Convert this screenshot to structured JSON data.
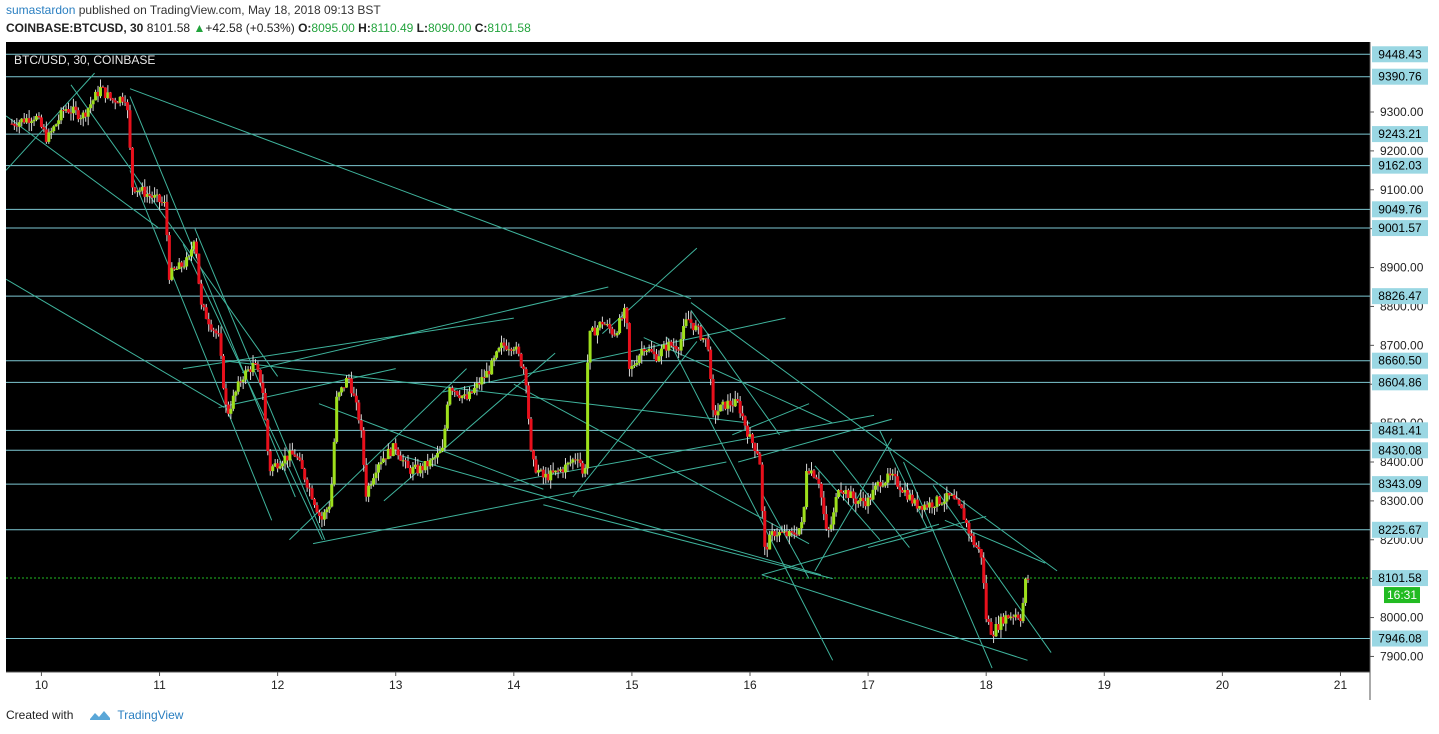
{
  "header": {
    "author": "sumastardon",
    "published_text": "published on TradingView.com, May 18, 2018 09:13 BST",
    "symbol": "COINBASE:BTCUSD, 30",
    "last": "8101.58",
    "change": "+42.58 (+0.53%)",
    "o_label": "O:",
    "o": "8095.00",
    "h_label": "H:",
    "h": "8110.49",
    "l_label": "L:",
    "l": "8090.00",
    "c_label": "C:",
    "c": "8101.58"
  },
  "footer": {
    "created_with": "Created with",
    "brand": "TradingView"
  },
  "colors": {
    "background": "#000000",
    "up": "#9ee01c",
    "down": "#e8101c",
    "wick": "#d8d8d8",
    "trendline": "#3fb39c",
    "hline": "#7ec8d3",
    "tag_bg": "#9ad7e3",
    "last_price": "#22bb22"
  },
  "chart_data": {
    "type": "candlestick",
    "title": "BTC/USD, 30, COINBASE",
    "ylim": [
      7860,
      9480
    ],
    "xlim": [
      9.7,
      21.25
    ],
    "y_ticks": [
      7900,
      8000,
      8100,
      8200,
      8300,
      8400,
      8500,
      8600,
      8700,
      8800,
      8900,
      9000,
      9100,
      9200,
      9300
    ],
    "y_tick_labels": [
      "7900.00",
      "8000.00",
      "8100.00",
      "8200.00",
      "8300.00",
      "8400.00",
      "8500.00",
      "8600.00",
      "8700.00",
      "8800.00",
      "8900.00",
      "9000.00",
      "9100.00",
      "9200.00",
      "9300.00"
    ],
    "x_ticks": [
      10,
      11,
      12,
      13,
      14,
      15,
      16,
      17,
      18,
      19,
      20,
      21
    ],
    "x_tick_labels": [
      "10",
      "11",
      "12",
      "13",
      "14",
      "15",
      "16",
      "17",
      "18",
      "19",
      "20",
      "21"
    ],
    "horizontal_levels": [
      9448.43,
      9390.76,
      9243.21,
      9162.03,
      9049.76,
      9001.57,
      8826.47,
      8660.5,
      8604.86,
      8481.41,
      8430.08,
      8343.09,
      8225.67,
      7946.08
    ],
    "horizontal_level_labels": [
      "9448.43",
      "9390.76",
      "9243.21",
      "9162.03",
      "9049.76",
      "9001.57",
      "8826.47",
      "8660.50",
      "8604.86",
      "8481.41",
      "8430.08",
      "8343.09",
      "8225.67",
      "7946.08"
    ],
    "last_price": 8101.58,
    "last_price_label": "8101.58",
    "countdown": "16:31",
    "price_path": [
      [
        9.75,
        9270
      ],
      [
        9.95,
        9290
      ],
      [
        10.05,
        9230
      ],
      [
        10.2,
        9310
      ],
      [
        10.35,
        9290
      ],
      [
        10.5,
        9360
      ],
      [
        10.6,
        9330
      ],
      [
        10.72,
        9340
      ],
      [
        10.77,
        9110
      ],
      [
        10.95,
        9080
      ],
      [
        11.05,
        9060
      ],
      [
        11.08,
        8880
      ],
      [
        11.25,
        8920
      ],
      [
        11.3,
        8990
      ],
      [
        11.35,
        8800
      ],
      [
        11.5,
        8720
      ],
      [
        11.57,
        8520
      ],
      [
        11.7,
        8620
      ],
      [
        11.8,
        8650
      ],
      [
        11.87,
        8600
      ],
      [
        11.93,
        8380
      ],
      [
        12.05,
        8410
      ],
      [
        12.15,
        8420
      ],
      [
        12.3,
        8310
      ],
      [
        12.37,
        8250
      ],
      [
        12.45,
        8300
      ],
      [
        12.5,
        8560
      ],
      [
        12.6,
        8620
      ],
      [
        12.7,
        8500
      ],
      [
        12.75,
        8320
      ],
      [
        12.85,
        8400
      ],
      [
        13.0,
        8440
      ],
      [
        13.1,
        8380
      ],
      [
        13.2,
        8380
      ],
      [
        13.3,
        8400
      ],
      [
        13.4,
        8430
      ],
      [
        13.45,
        8600
      ],
      [
        13.6,
        8560
      ],
      [
        13.7,
        8600
      ],
      [
        13.8,
        8640
      ],
      [
        13.9,
        8700
      ],
      [
        14.0,
        8700
      ],
      [
        14.1,
        8630
      ],
      [
        14.15,
        8400
      ],
      [
        14.25,
        8360
      ],
      [
        14.35,
        8370
      ],
      [
        14.45,
        8390
      ],
      [
        14.55,
        8420
      ],
      [
        14.6,
        8340
      ],
      [
        14.63,
        8720
      ],
      [
        14.75,
        8760
      ],
      [
        14.85,
        8730
      ],
      [
        14.95,
        8790
      ],
      [
        14.98,
        8630
      ],
      [
        15.1,
        8700
      ],
      [
        15.2,
        8670
      ],
      [
        15.3,
        8700
      ],
      [
        15.4,
        8700
      ],
      [
        15.47,
        8770
      ],
      [
        15.55,
        8740
      ],
      [
        15.65,
        8700
      ],
      [
        15.68,
        8520
      ],
      [
        15.8,
        8550
      ],
      [
        15.9,
        8550
      ],
      [
        16.0,
        8460
      ],
      [
        16.08,
        8420
      ],
      [
        16.12,
        8170
      ],
      [
        16.2,
        8220
      ],
      [
        16.35,
        8210
      ],
      [
        16.45,
        8240
      ],
      [
        16.48,
        8390
      ],
      [
        16.58,
        8360
      ],
      [
        16.65,
        8210
      ],
      [
        16.7,
        8250
      ],
      [
        16.75,
        8340
      ],
      [
        16.9,
        8300
      ],
      [
        17.0,
        8300
      ],
      [
        17.1,
        8350
      ],
      [
        17.2,
        8360
      ],
      [
        17.3,
        8330
      ],
      [
        17.4,
        8290
      ],
      [
        17.5,
        8290
      ],
      [
        17.6,
        8300
      ],
      [
        17.7,
        8310
      ],
      [
        17.8,
        8270
      ],
      [
        17.88,
        8200
      ],
      [
        17.96,
        8160
      ],
      [
        18.0,
        8000
      ],
      [
        18.05,
        7960
      ],
      [
        18.15,
        8000
      ],
      [
        18.25,
        8010
      ],
      [
        18.3,
        8000
      ],
      [
        18.33,
        8090
      ],
      [
        18.36,
        8101.58
      ]
    ],
    "trendlines": [
      [
        9.7,
        9150,
        10.45,
        9400
      ],
      [
        9.7,
        9290,
        11.0,
        9000
      ],
      [
        9.7,
        8870,
        11.55,
        8540
      ],
      [
        10.25,
        9370,
        12.0,
        8620
      ],
      [
        10.75,
        9340,
        12.15,
        8310
      ],
      [
        10.75,
        9150,
        11.95,
        8250
      ],
      [
        11.3,
        9000,
        12.4,
        8200
      ],
      [
        11.2,
        8960,
        12.38,
        8200
      ],
      [
        10.75,
        9360,
        15.5,
        8820
      ],
      [
        11.55,
        8660,
        16.0,
        8500
      ],
      [
        11.5,
        8540,
        13.0,
        8640
      ],
      [
        11.7,
        8630,
        14.8,
        8850
      ],
      [
        11.2,
        8640,
        14.0,
        8770
      ],
      [
        12.1,
        8200,
        13.6,
        8640
      ],
      [
        12.9,
        8300,
        14.35,
        8680
      ],
      [
        12.3,
        8190,
        15.8,
        8400
      ],
      [
        12.35,
        8550,
        14.25,
        8330
      ],
      [
        13.0,
        8420,
        16.6,
        8110
      ],
      [
        14.0,
        8350,
        17.05,
        8520
      ],
      [
        14.25,
        8290,
        16.7,
        8100
      ],
      [
        14.5,
        8310,
        15.55,
        8710
      ],
      [
        14.0,
        8600,
        16.5,
        8190
      ],
      [
        14.75,
        8730,
        15.55,
        8950
      ],
      [
        13.4,
        8580,
        16.3,
        8770
      ],
      [
        15.1,
        8720,
        16.7,
        8500
      ],
      [
        15.5,
        8810,
        18.6,
        8120
      ],
      [
        15.5,
        8790,
        16.25,
        8470
      ],
      [
        15.85,
        8470,
        16.5,
        8550
      ],
      [
        15.9,
        8400,
        17.2,
        8510
      ],
      [
        15.3,
        8720,
        16.7,
        7890
      ],
      [
        16.1,
        8110,
        17.6,
        8240
      ],
      [
        16.1,
        8110,
        18.35,
        7890
      ],
      [
        16.55,
        8390,
        17.1,
        8200
      ],
      [
        16.1,
        8320,
        16.5,
        8100
      ],
      [
        16.55,
        8120,
        17.2,
        8460
      ],
      [
        17.1,
        8480,
        17.5,
        8230
      ],
      [
        17.3,
        8400,
        18.05,
        7870
      ],
      [
        17.55,
        8340,
        18.55,
        7910
      ],
      [
        17.0,
        8180,
        18.0,
        8260
      ],
      [
        16.7,
        8430,
        17.35,
        8180
      ],
      [
        17.65,
        8250,
        18.5,
        8140
      ]
    ]
  }
}
